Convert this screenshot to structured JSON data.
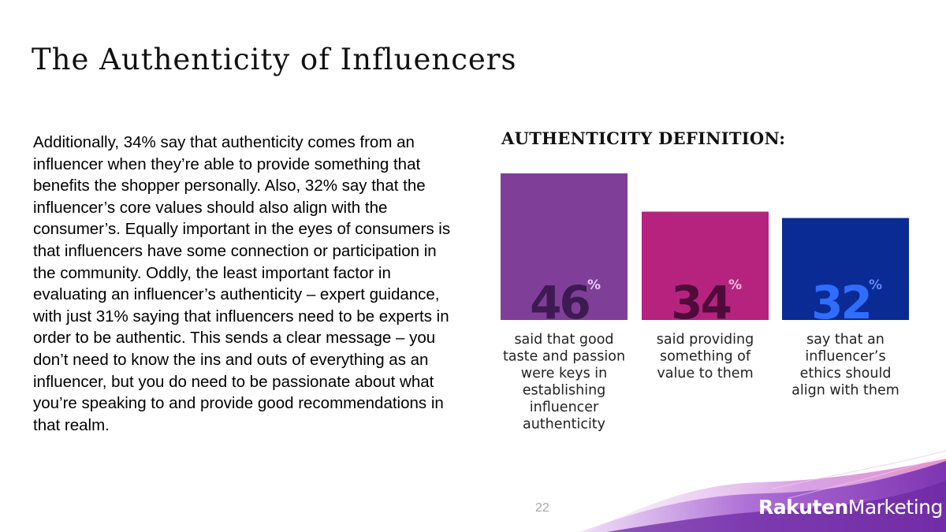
{
  "slide": {
    "title": "The Authenticity of Influencers",
    "body": "Additionally, 34% say that authenticity comes from an influencer when they’re able to provide something that benefits the shopper personally. Also, 32% say that the influencer’s core values should also align with the consumer’s. Equally important in the eyes of consumers is that influencers have some connection or participation in the community. Oddly, the least important factor in evaluating an influencer’s authenticity – expert guidance, with just 31% saying that influencers need to be experts in order to be authentic. This sends a clear message – you don’t need to know the ins and outs of everything as an influencer, but you do need to be passionate about what you’re speaking to and provide good recommendations in that realm.",
    "page_number": "22"
  },
  "brand": {
    "part1": "Rakuten",
    "part2": "Marketing"
  },
  "chart_data": {
    "type": "bar",
    "title": "AUTHENTICITY DEFINITION:",
    "unit": "%",
    "ylim": [
      0,
      46
    ],
    "legend": "none",
    "grid": false,
    "categories": [
      "said that good taste and passion were keys in establishing influencer authenticity",
      "said providing something of value to them",
      "say that an influencer’s ethics should align with them"
    ],
    "values": [
      46,
      34,
      32
    ],
    "value_labels": [
      "46",
      "34",
      "32"
    ],
    "category_lines": [
      [
        "said that good",
        "taste and passion",
        "were keys in",
        "establishing",
        "influencer",
        "authenticity"
      ],
      [
        "said providing",
        "something of",
        "value to them"
      ],
      [
        "say that an",
        "influencer’s",
        "ethics should",
        "align with them"
      ]
    ],
    "colors": {
      "bars": [
        "#7f3f98",
        "#b5237f",
        "#0a2b94"
      ],
      "labels": [
        "#3e1a52",
        "#4f0b3a",
        "#2f6dff"
      ],
      "pct": [
        "#e6ccf2",
        "#f7c4e2",
        "#5b8dff"
      ]
    }
  }
}
